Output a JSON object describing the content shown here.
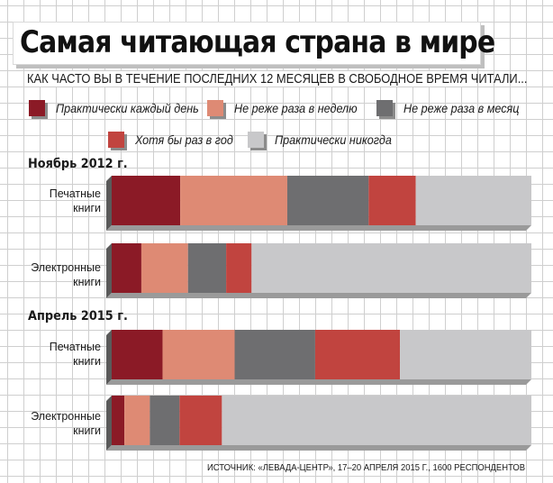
{
  "title": "Самая читающая страна в мире",
  "question": "КАК ЧАСТО ВЫ В ТЕЧЕНИЕ ПОСЛЕДНИХ 12 МЕСЯЦЕВ В СВОБОДНОЕ ВРЕМЯ ЧИТАЛИ...",
  "legend": [
    {
      "label": "Практически каждый день",
      "color": "#8b1a26"
    },
    {
      "label": "Не реже раза в неделю",
      "color": "#de8a74"
    },
    {
      "label": "Не реже раза в месяц",
      "color": "#6e6e70"
    },
    {
      "label": "Хотя бы раз в год",
      "color": "#c1443f"
    },
    {
      "label": "Практически никогда",
      "color": "#c8c8ca"
    }
  ],
  "sections": [
    {
      "title": "Ноябрь 2012 г.",
      "rows": [
        {
          "label_lines": [
            "Печатные",
            "книги"
          ]
        },
        {
          "label_lines": [
            "Электронные",
            "книги"
          ]
        }
      ]
    },
    {
      "title": "Апрель 2015 г.",
      "rows": [
        {
          "label_lines": [
            "Печатные",
            "книги"
          ]
        },
        {
          "label_lines": [
            "Электронные",
            "книги"
          ]
        }
      ]
    }
  ],
  "chart_data": {
    "type": "bar",
    "orientation": "horizontal",
    "stacked": true,
    "percent_scale": [
      0,
      100
    ],
    "categories": [
      "Ноябрь 2012 г. — Печатные книги",
      "Ноябрь 2012 г. — Электронные книги",
      "Апрель 2015 г. — Печатные книги",
      "Апрель 2015 г. — Электронные книги"
    ],
    "series": [
      {
        "name": "Практически каждый день",
        "values": [
          16,
          7,
          12,
          3
        ]
      },
      {
        "name": "Не реже раза в неделю",
        "values": [
          25,
          11,
          17,
          6
        ]
      },
      {
        "name": "Не реже раза в месяц",
        "values": [
          19,
          9,
          19,
          7
        ]
      },
      {
        "name": "Хотя бы раз в год",
        "values": [
          11,
          6,
          20,
          10
        ]
      },
      {
        "name": "Практически никогда",
        "values": [
          27,
          66,
          31,
          73
        ]
      }
    ],
    "colors": [
      "#8b1a26",
      "#de8a74",
      "#6e6e70",
      "#c1443f",
      "#c8c8ca"
    ],
    "grid": true,
    "legend_placement": "top"
  },
  "source": "ИСТОЧНИК: «ЛЕВАДА-ЦЕНТР», 17–20 АПРЕЛЯ 2015 Г., 1600 РЕСПОНДЕНТОВ"
}
